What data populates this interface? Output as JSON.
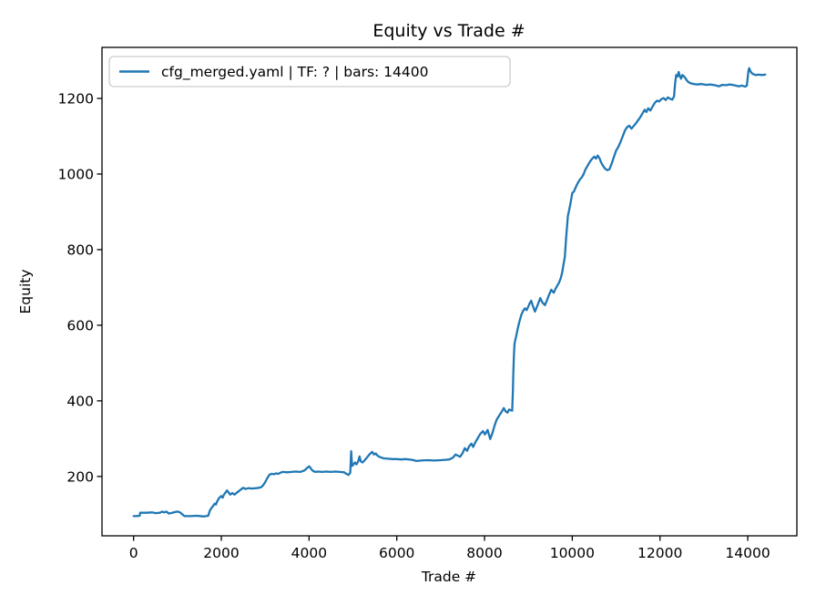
{
  "figure": {
    "background": "#ffffff"
  },
  "chart_data": {
    "type": "line",
    "title": "Equity vs Trade #",
    "xlabel": "Trade #",
    "ylabel": "Equity",
    "xlim": [
      -720,
      15120
    ],
    "ylim": [
      43,
      1335
    ],
    "x_ticks": [
      0,
      2000,
      4000,
      6000,
      8000,
      10000,
      12000,
      14000
    ],
    "y_ticks": [
      200,
      400,
      600,
      800,
      1000,
      1200
    ],
    "grid": false,
    "legend": {
      "position": "upper-left",
      "border_color": "#cccccc",
      "background": "#ffffff"
    },
    "axis_color": "#000000",
    "series": [
      {
        "name": "cfg_merged.yaml | TF: ? | bars: 14400",
        "color": "#1f77b4",
        "points": [
          [
            0,
            95
          ],
          [
            60,
            95
          ],
          [
            140,
            96
          ],
          [
            150,
            104
          ],
          [
            300,
            104
          ],
          [
            420,
            105
          ],
          [
            500,
            103
          ],
          [
            600,
            104
          ],
          [
            650,
            107
          ],
          [
            700,
            105
          ],
          [
            750,
            107
          ],
          [
            800,
            102
          ],
          [
            850,
            103
          ],
          [
            950,
            106
          ],
          [
            1000,
            107
          ],
          [
            1060,
            105
          ],
          [
            1120,
            99
          ],
          [
            1160,
            95
          ],
          [
            1300,
            95
          ],
          [
            1450,
            96
          ],
          [
            1600,
            94
          ],
          [
            1700,
            96
          ],
          [
            1740,
            110
          ],
          [
            1780,
            117
          ],
          [
            1820,
            123
          ],
          [
            1850,
            128
          ],
          [
            1880,
            126
          ],
          [
            1900,
            133
          ],
          [
            1950,
            143
          ],
          [
            2000,
            148
          ],
          [
            2030,
            144
          ],
          [
            2060,
            152
          ],
          [
            2100,
            158
          ],
          [
            2130,
            163
          ],
          [
            2170,
            157
          ],
          [
            2200,
            152
          ],
          [
            2250,
            156
          ],
          [
            2300,
            152
          ],
          [
            2350,
            157
          ],
          [
            2400,
            161
          ],
          [
            2450,
            166
          ],
          [
            2500,
            170
          ],
          [
            2550,
            167
          ],
          [
            2620,
            169
          ],
          [
            2700,
            168
          ],
          [
            2800,
            169
          ],
          [
            2900,
            171
          ],
          [
            2950,
            176
          ],
          [
            3000,
            185
          ],
          [
            3050,
            196
          ],
          [
            3100,
            205
          ],
          [
            3150,
            207
          ],
          [
            3200,
            206
          ],
          [
            3250,
            208
          ],
          [
            3300,
            207
          ],
          [
            3350,
            210
          ],
          [
            3400,
            212
          ],
          [
            3500,
            211
          ],
          [
            3600,
            212
          ],
          [
            3700,
            213
          ],
          [
            3800,
            212
          ],
          [
            3900,
            216
          ],
          [
            3950,
            222
          ],
          [
            4000,
            227
          ],
          [
            4030,
            223
          ],
          [
            4060,
            218
          ],
          [
            4100,
            214
          ],
          [
            4150,
            212
          ],
          [
            4200,
            213
          ],
          [
            4300,
            212
          ],
          [
            4400,
            213
          ],
          [
            4500,
            212
          ],
          [
            4600,
            213
          ],
          [
            4700,
            212
          ],
          [
            4800,
            211
          ],
          [
            4850,
            207
          ],
          [
            4900,
            204
          ],
          [
            4940,
            210
          ],
          [
            4960,
            267
          ],
          [
            4980,
            228
          ],
          [
            5000,
            230
          ],
          [
            5050,
            237
          ],
          [
            5080,
            232
          ],
          [
            5120,
            240
          ],
          [
            5150,
            253
          ],
          [
            5180,
            240
          ],
          [
            5220,
            237
          ],
          [
            5270,
            243
          ],
          [
            5320,
            250
          ],
          [
            5360,
            256
          ],
          [
            5400,
            261
          ],
          [
            5440,
            265
          ],
          [
            5480,
            258
          ],
          [
            5520,
            261
          ],
          [
            5560,
            255
          ],
          [
            5620,
            251
          ],
          [
            5700,
            248
          ],
          [
            5800,
            247
          ],
          [
            5900,
            246
          ],
          [
            6000,
            246
          ],
          [
            6100,
            245
          ],
          [
            6200,
            246
          ],
          [
            6350,
            244
          ],
          [
            6450,
            241
          ],
          [
            6550,
            242
          ],
          [
            6700,
            243
          ],
          [
            6850,
            242
          ],
          [
            7000,
            243
          ],
          [
            7100,
            244
          ],
          [
            7200,
            245
          ],
          [
            7280,
            250
          ],
          [
            7340,
            258
          ],
          [
            7390,
            255
          ],
          [
            7440,
            252
          ],
          [
            7500,
            262
          ],
          [
            7550,
            275
          ],
          [
            7600,
            268
          ],
          [
            7650,
            280
          ],
          [
            7700,
            287
          ],
          [
            7740,
            278
          ],
          [
            7790,
            290
          ],
          [
            7860,
            304
          ],
          [
            7900,
            312
          ],
          [
            7965,
            320
          ],
          [
            8010,
            311
          ],
          [
            8070,
            323
          ],
          [
            8130,
            299
          ],
          [
            8180,
            315
          ],
          [
            8230,
            335
          ],
          [
            8275,
            350
          ],
          [
            8320,
            358
          ],
          [
            8380,
            369
          ],
          [
            8440,
            381
          ],
          [
            8480,
            372
          ],
          [
            8525,
            369
          ],
          [
            8560,
            377
          ],
          [
            8600,
            375
          ],
          [
            8630,
            374
          ],
          [
            8645,
            420
          ],
          [
            8655,
            470
          ],
          [
            8662,
            490
          ],
          [
            8670,
            520
          ],
          [
            8685,
            552
          ],
          [
            8720,
            570
          ],
          [
            8760,
            592
          ],
          [
            8800,
            612
          ],
          [
            8840,
            628
          ],
          [
            8880,
            638
          ],
          [
            8920,
            645
          ],
          [
            8960,
            640
          ],
          [
            9000,
            650
          ],
          [
            9030,
            658
          ],
          [
            9065,
            665
          ],
          [
            9100,
            652
          ],
          [
            9150,
            636
          ],
          [
            9200,
            650
          ],
          [
            9270,
            672
          ],
          [
            9320,
            660
          ],
          [
            9375,
            653
          ],
          [
            9420,
            665
          ],
          [
            9470,
            680
          ],
          [
            9520,
            694
          ],
          [
            9560,
            688
          ],
          [
            9580,
            686
          ],
          [
            9620,
            697
          ],
          [
            9660,
            705
          ],
          [
            9700,
            713
          ],
          [
            9740,
            725
          ],
          [
            9770,
            740
          ],
          [
            9800,
            760
          ],
          [
            9830,
            780
          ],
          [
            9860,
            830
          ],
          [
            9880,
            860
          ],
          [
            9900,
            890
          ],
          [
            9930,
            905
          ],
          [
            9960,
            922
          ],
          [
            10000,
            950
          ],
          [
            10040,
            954
          ],
          [
            10080,
            965
          ],
          [
            10120,
            975
          ],
          [
            10170,
            985
          ],
          [
            10220,
            992
          ],
          [
            10260,
            1000
          ],
          [
            10300,
            1012
          ],
          [
            10350,
            1022
          ],
          [
            10400,
            1032
          ],
          [
            10450,
            1040
          ],
          [
            10500,
            1046
          ],
          [
            10540,
            1041
          ],
          [
            10580,
            1049
          ],
          [
            10620,
            1042
          ],
          [
            10660,
            1030
          ],
          [
            10700,
            1022
          ],
          [
            10750,
            1014
          ],
          [
            10800,
            1010
          ],
          [
            10850,
            1013
          ],
          [
            10900,
            1028
          ],
          [
            10950,
            1045
          ],
          [
            11000,
            1062
          ],
          [
            11050,
            1072
          ],
          [
            11100,
            1085
          ],
          [
            11150,
            1100
          ],
          [
            11200,
            1115
          ],
          [
            11250,
            1124
          ],
          [
            11300,
            1128
          ],
          [
            11350,
            1120
          ],
          [
            11400,
            1127
          ],
          [
            11450,
            1134
          ],
          [
            11500,
            1142
          ],
          [
            11550,
            1150
          ],
          [
            11600,
            1160
          ],
          [
            11650,
            1170
          ],
          [
            11690,
            1164
          ],
          [
            11730,
            1174
          ],
          [
            11780,
            1168
          ],
          [
            11830,
            1178
          ],
          [
            11880,
            1188
          ],
          [
            11930,
            1194
          ],
          [
            11980,
            1192
          ],
          [
            12030,
            1198
          ],
          [
            12080,
            1201
          ],
          [
            12130,
            1196
          ],
          [
            12180,
            1203
          ],
          [
            12230,
            1199
          ],
          [
            12280,
            1197
          ],
          [
            12320,
            1205
          ],
          [
            12345,
            1240
          ],
          [
            12370,
            1262
          ],
          [
            12400,
            1258
          ],
          [
            12425,
            1270
          ],
          [
            12455,
            1258
          ],
          [
            12480,
            1252
          ],
          [
            12510,
            1262
          ],
          [
            12540,
            1259
          ],
          [
            12570,
            1255
          ],
          [
            12610,
            1248
          ],
          [
            12650,
            1243
          ],
          [
            12700,
            1240
          ],
          [
            12770,
            1238
          ],
          [
            12850,
            1237
          ],
          [
            12950,
            1238
          ],
          [
            13050,
            1236
          ],
          [
            13150,
            1237
          ],
          [
            13250,
            1235
          ],
          [
            13350,
            1232
          ],
          [
            13420,
            1236
          ],
          [
            13500,
            1235
          ],
          [
            13580,
            1237
          ],
          [
            13650,
            1236
          ],
          [
            13720,
            1234
          ],
          [
            13800,
            1232
          ],
          [
            13870,
            1234
          ],
          [
            13940,
            1231
          ],
          [
            13980,
            1234
          ],
          [
            14005,
            1262
          ],
          [
            14020,
            1275
          ],
          [
            14035,
            1280
          ],
          [
            14060,
            1272
          ],
          [
            14090,
            1267
          ],
          [
            14130,
            1264
          ],
          [
            14180,
            1262
          ],
          [
            14250,
            1263
          ],
          [
            14320,
            1262
          ],
          [
            14400,
            1263
          ]
        ]
      }
    ]
  }
}
